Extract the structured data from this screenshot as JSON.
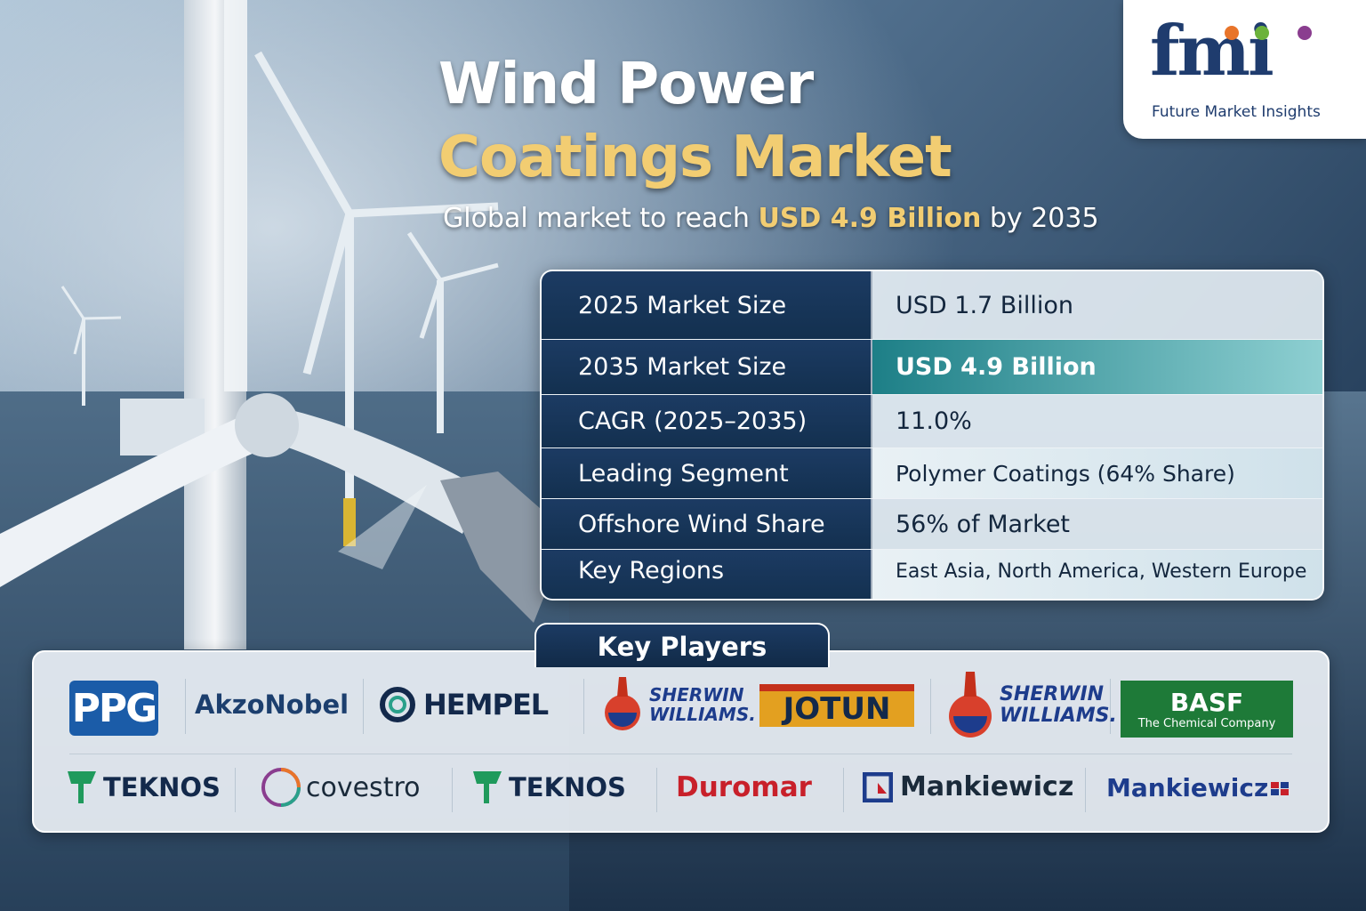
{
  "title_line1": "Wind Power",
  "title_line2": "Coatings Market",
  "subtitle": {
    "prefix": "Global market to reach",
    "highlight": "USD 4.9 Billion",
    "suffix": "by 2035"
  },
  "brand": {
    "mark": "fmi",
    "name": "Future Market Insights",
    "colors": [
      "#e8742a",
      "#6bb23b",
      "#8a3d8f"
    ]
  },
  "stats": [
    {
      "label": "2025 Market Size",
      "value": "USD 1.7 Billion"
    },
    {
      "label": "2035 Market Size",
      "value": "USD 4.9 Billion"
    },
    {
      "label": "CAGR (2025–2035)",
      "value": "11.0%"
    },
    {
      "label": "Leading Segment",
      "value": "Polymer Coatings (64% Share)"
    },
    {
      "label": "Offshore Wind Share",
      "value": "56% of Market"
    },
    {
      "label": "Key Regions",
      "value": "East Asia, North America, Western Europe"
    }
  ],
  "key_players": {
    "heading": "Key Players",
    "row1": [
      "PPG",
      "AkzoNobel",
      "HEMPEL",
      "SHERWIN WILLIAMS.",
      "JOTUN",
      "SHERWIN WILLIAMS.",
      "BASF",
      "The Chemical Company"
    ],
    "row2": [
      "TEKNOS",
      "covestro",
      "TEKNOS",
      "Duromar",
      "Mankiewicz",
      "Mankiewicz"
    ]
  },
  "colors": {
    "navy": "#1c3b63",
    "gold": "#f2cd72",
    "teal": "#1d7f87"
  }
}
